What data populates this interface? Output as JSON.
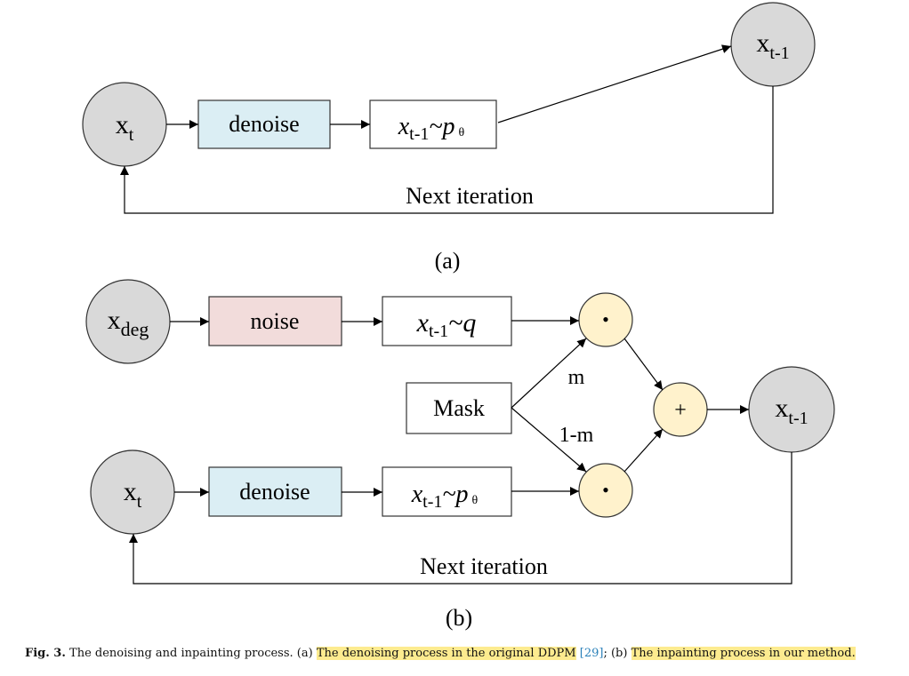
{
  "figure_a": {
    "node_xt": {
      "main": "x",
      "sub": "t"
    },
    "denoise_label": "denoise",
    "sample_label": {
      "main": "x",
      "sub": "t-1",
      "rel": "~p",
      "param": "θ"
    },
    "node_xt1": {
      "main": "x",
      "sub": "t-1"
    },
    "loop_label": "Next iteration",
    "panel_label": "(a)"
  },
  "figure_b": {
    "node_xdeg": {
      "main": "x",
      "sub": "deg"
    },
    "noise_label": "noise",
    "sample_q_label": {
      "main": "x",
      "sub": "t-1",
      "rel": "~q"
    },
    "mask_label": "Mask",
    "m_label": "m",
    "one_minus_m_label": "1-m",
    "dot_symbol": "•",
    "plus_symbol": "+",
    "node_xt1": {
      "main": "x",
      "sub": "t-1"
    },
    "node_xt": {
      "main": "x",
      "sub": "t"
    },
    "denoise_label": "denoise",
    "sample_p_label": {
      "main": "x",
      "sub": "t-1",
      "rel": "~p",
      "param": "θ"
    },
    "loop_label": "Next iteration",
    "panel_label": "(b)"
  },
  "caption": {
    "fig_label": "Fig. 3.",
    "text_1": "The denoising and inpainting process. (a)",
    "highlight_1": "The denoising process in the original DDPM",
    "ref": "[29]",
    "text_2": "; (b)",
    "highlight_2": "The inpainting process in our method."
  },
  "colors": {
    "circle_fill": "#d9d9d9",
    "denoise_fill": "#dbeef4",
    "noise_fill": "#f2dcdb",
    "op_fill": "#fff2cc",
    "highlight": "#fdeb8f",
    "ref": "#2a80b9"
  }
}
